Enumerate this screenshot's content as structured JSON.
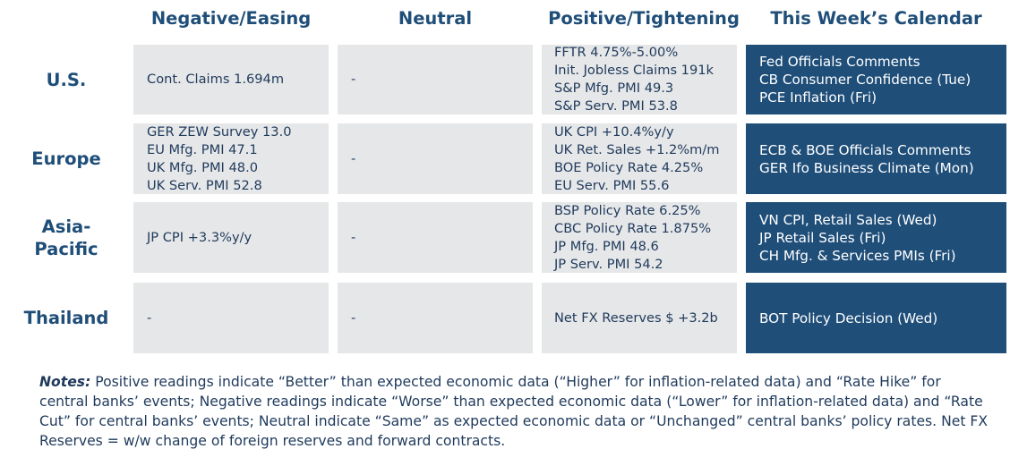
{
  "columns": [
    "Negative/Easing",
    "Neutral",
    "Positive/Tightening",
    "This Week’s Calendar"
  ],
  "rows": [
    {
      "label_lines": [
        "U.S."
      ],
      "negative": [
        "Cont. Claims 1.694m"
      ],
      "neutral": [
        "-"
      ],
      "positive": [
        "FFTR 4.75%-5.00%",
        "Init. Jobless Claims 191k",
        "S&P Mfg. PMI 49.3",
        "S&P Serv. PMI 53.8"
      ],
      "calendar": [
        "Fed Officials Comments",
        "CB Consumer Confidence (Tue)",
        "PCE Inflation (Fri)"
      ]
    },
    {
      "label_lines": [
        "Europe"
      ],
      "negative": [
        "GER ZEW Survey 13.0",
        "EU Mfg. PMI 47.1",
        "UK Mfg. PMI 48.0",
        "UK Serv. PMI 52.8"
      ],
      "neutral": [
        "-"
      ],
      "positive": [
        "UK CPI +10.4%y/y",
        "UK Ret. Sales +1.2%m/m",
        "BOE Policy Rate 4.25%",
        "EU Serv. PMI 55.6"
      ],
      "calendar": [
        "ECB & BOE Officials Comments",
        "GER Ifo Business Climate (Mon)"
      ]
    },
    {
      "label_lines": [
        "Asia-",
        "Pacific"
      ],
      "negative": [
        "JP CPI +3.3%y/y"
      ],
      "neutral": [
        "-"
      ],
      "positive": [
        "BSP Policy Rate 6.25%",
        "CBC Policy Rate 1.875%",
        "JP Mfg. PMI 48.6",
        "JP Serv. PMI 54.2"
      ],
      "calendar": [
        "VN CPI, Retail Sales (Wed)",
        "JP Retail Sales (Fri)",
        "CH Mfg. & Services PMIs (Fri)"
      ]
    },
    {
      "label_lines": [
        "Thailand"
      ],
      "negative": [
        "-"
      ],
      "neutral": [
        "-"
      ],
      "positive": [
        "Net FX Reserves $ +3.2b"
      ],
      "calendar": [
        "BOT Policy Decision (Wed)"
      ]
    }
  ],
  "notes": {
    "label": "Notes:",
    "text": " Positive readings indicate “Better” than expected economic data (“Higher” for inflation-related data) and “Rate Hike” for central banks’ events; Negative readings indicate “Worse” than expected economic data (“Lower” for inflation-related data) and “Rate Cut” for central banks’ events; Neutral indicate “Same” as expected economic data or “Unchanged” central banks’ policy rates. Net FX Reserves = w/w change of foreign reserves and forward contracts."
  }
}
